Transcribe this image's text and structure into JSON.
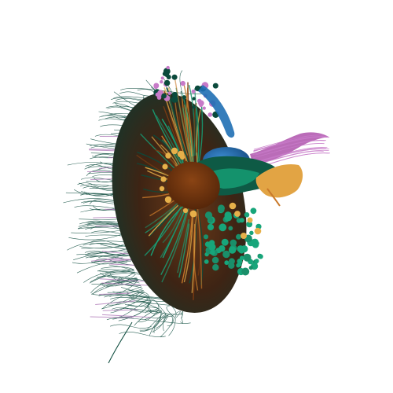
{
  "scene": {
    "subject": "neuron-reconstruction-render",
    "background_color": "#ffffff",
    "colors": {
      "dark_teal": "#0b4a3c",
      "teal_green": "#1a8f6a",
      "bright_green": "#17a57a",
      "blue": "#1f6fb4",
      "pink_purple": "#c77ac8",
      "purple": "#9a5aa8",
      "brown": "#7a3b12",
      "dark_brown": "#5a2a0c",
      "orange": "#c9792a",
      "yellow_gold": "#e6b04a"
    }
  }
}
